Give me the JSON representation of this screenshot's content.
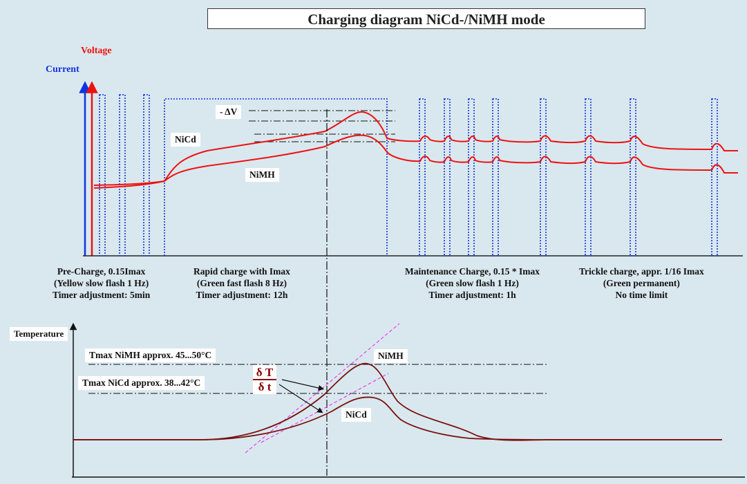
{
  "title": "Charging diagram NiCd-/NiMH mode",
  "axes": {
    "voltage": "Voltage",
    "current": "Current",
    "temperature": "Temperature"
  },
  "colors": {
    "voltage": "#ee1111",
    "current": "#1133dd",
    "temperature_curve": "#7a1010",
    "tangent": "#ee22ee",
    "background": "#d9e8ee"
  },
  "upper_labels": {
    "nicd": "NiCd",
    "nimh": "NiMH",
    "delta_v": "- ΔV"
  },
  "phases": [
    {
      "lines": [
        "Pre-Charge, 0.15Imax",
        "(Yellow slow flash 1 Hz)",
        "Timer adjustment: 5min"
      ]
    },
    {
      "lines": [
        "Rapid charge with Imax",
        "(Green fast flash 8 Hz)",
        "Timer adjustment: 12h"
      ]
    },
    {
      "lines": [
        "Maintenance Charge, 0.15 * Imax",
        "(Green slow flash 1 Hz)",
        "Timer adjustment: 1h"
      ]
    },
    {
      "lines": [
        "Trickle charge, appr. 1/16 Imax",
        "(Green permanent)",
        "No time limit"
      ]
    }
  ],
  "lower_labels": {
    "tmax_nimh": "Tmax NiMH approx. 45...50°C",
    "tmax_nicd": "Tmax NiCd approx. 38...42°C",
    "nimh": "NiMH",
    "nicd": "NiCd",
    "dT": "δ T",
    "dt": "δ t"
  }
}
